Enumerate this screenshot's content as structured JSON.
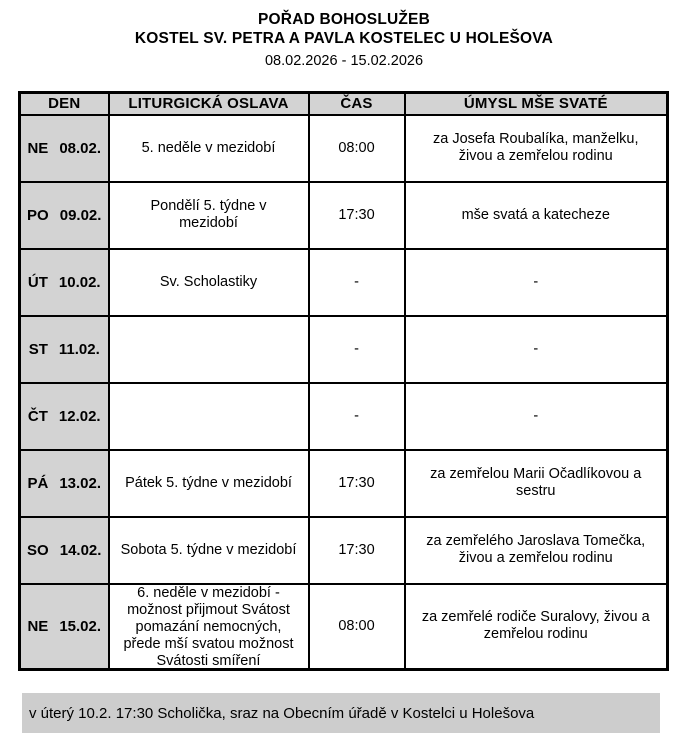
{
  "title": {
    "line1": "POŘAD BOHOSLUŽEB",
    "line2": "KOSTEL SV. PETRA A PAVLA KOSTELEC U HOLEŠOVA",
    "date_range": "08.02.2026 - 15.02.2026"
  },
  "table": {
    "headers": [
      "DEN",
      "LITURGICKÁ OSLAVA",
      "ČAS",
      "ÚMYSL MŠE SVATÉ"
    ],
    "rows": [
      {
        "day": "NE",
        "date": "08.02.",
        "celebration": "5. neděle v mezidobí",
        "time": "08:00",
        "intention": "za Josefa Roubalíka, manželku,\nživou a zemřelou rodinu"
      },
      {
        "day": "PO",
        "date": "09.02.",
        "celebration": "Pondělí 5. týdne v\nmezidobí",
        "time": "17:30",
        "intention": "mše svatá a katecheze"
      },
      {
        "day": "ÚT",
        "date": "10.02.",
        "celebration": "Sv. Scholastiky",
        "time": "-",
        "intention": "-"
      },
      {
        "day": "ST",
        "date": "11.02.",
        "celebration": "",
        "time": "-",
        "intention": "-"
      },
      {
        "day": "ČT",
        "date": "12.02.",
        "celebration": "",
        "time": "-",
        "intention": "-"
      },
      {
        "day": "PÁ",
        "date": "13.02.",
        "celebration": "Pátek 5. týdne v mezidobí",
        "time": "17:30",
        "intention": "za zemřelou Marii Očadlíkovou a\nsestru"
      },
      {
        "day": "SO",
        "date": "14.02.",
        "celebration": "Sobota 5. týdne v mezidobí",
        "time": "17:30",
        "intention": "za zemřelého Jaroslava Tomečka,\nživou a zemřelou rodinu"
      },
      {
        "day": "NE",
        "date": "15.02.",
        "celebration": "6. neděle v mezidobí -\nmožnost přijmout Svátost\npomazání nemocných,\npřede mší svatou možnost\nSvátosti smíření",
        "time": "08:00",
        "intention": "za zemřelé rodiče Suralovy, živou a\nzemřelou rodinu"
      }
    ]
  },
  "footer": {
    "note": "v úterý 10.2. 17:30 Scholička, sraz na Obecním úřadě v Kostelci u Holešova"
  },
  "colors": {
    "cell_gray": "#d3d3d3",
    "footer_gray": "#cdcdcd",
    "border": "#000000"
  }
}
